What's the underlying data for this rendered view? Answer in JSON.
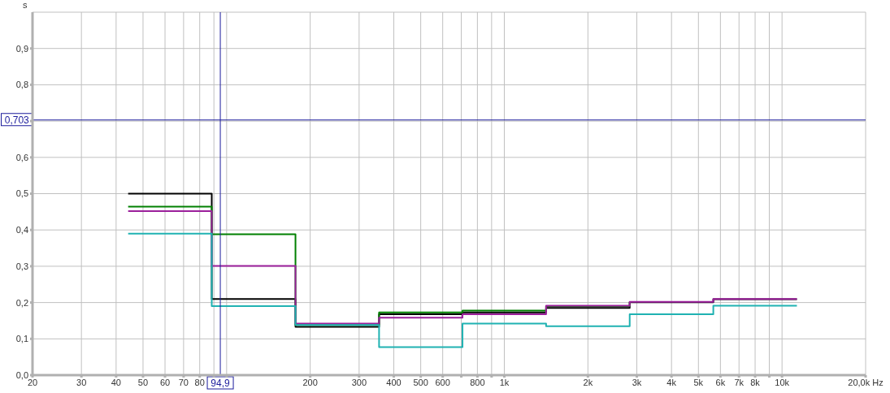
{
  "chart_data": {
    "type": "step",
    "ylabel": "s",
    "x": [
      44.2,
      88.4,
      177,
      354,
      707,
      1414,
      2828,
      5657,
      11314
    ],
    "series": [
      {
        "color": "#000000",
        "values": [
          0.5,
          0.21,
          0.133,
          0.168,
          0.173,
          0.185,
          0.201,
          0.209,
          0.209
        ]
      },
      {
        "color": "#008000",
        "values": [
          0.464,
          0.388,
          0.138,
          0.173,
          0.178,
          0.19,
          0.202,
          null,
          null
        ]
      },
      {
        "color": "#9b1f9b",
        "values": [
          0.452,
          0.301,
          0.142,
          0.158,
          0.168,
          0.191,
          0.202,
          0.21,
          0.21
        ]
      },
      {
        "color": "#20b2b2",
        "values": [
          0.39,
          0.19,
          0.138,
          0.077,
          0.142,
          0.135,
          0.168,
          0.191,
          0.191
        ]
      }
    ],
    "xlim": [
      20,
      20000
    ],
    "ylim": [
      0,
      1
    ],
    "log": "x",
    "xticks": [
      20,
      30,
      40,
      50,
      60,
      70,
      80,
      {
        "value": 90,
        "label": null
      },
      {
        "value": 100,
        "label": null
      },
      200,
      300,
      400,
      500,
      600,
      {
        "value": 700,
        "label": null
      },
      800,
      {
        "value": 900,
        "label": null
      },
      {
        "value": 1000,
        "label": "1k"
      },
      {
        "value": 2000,
        "label": "2k"
      },
      {
        "value": 3000,
        "label": "3k"
      },
      {
        "value": 4000,
        "label": "4k"
      },
      {
        "value": 5000,
        "label": "5k"
      },
      {
        "value": 6000,
        "label": "6k"
      },
      {
        "value": 7000,
        "label": "7k"
      },
      {
        "value": 8000,
        "label": "8k"
      },
      {
        "value": 9000,
        "label": null
      },
      {
        "value": 10000,
        "label": "10k"
      },
      {
        "value": 20000,
        "label": "20,0k Hz"
      }
    ],
    "yticks": [
      {
        "value": 0,
        "label": "0,0"
      },
      {
        "value": 0.1,
        "label": "0,1"
      },
      {
        "value": 0.2,
        "label": "0,2"
      },
      {
        "value": 0.3,
        "label": "0,3"
      },
      {
        "value": 0.4,
        "label": "0,4"
      },
      {
        "value": 0.5,
        "label": "0,5"
      },
      {
        "value": 0.6,
        "label": "0,6"
      },
      {
        "value": 0.7,
        "label": null
      },
      {
        "value": 0.8,
        "label": "0,8"
      },
      {
        "value": 0.9,
        "label": "0,9"
      }
    ],
    "ref_lines": [
      {
        "axis": "x",
        "value": 94.9,
        "label": "94,9",
        "color": "#1c1c9c"
      },
      {
        "axis": "y",
        "value": 0.703,
        "label": "0,703",
        "color": "#1c1c9c"
      }
    ],
    "grid": true,
    "marker": "none",
    "line_style": "solid"
  }
}
